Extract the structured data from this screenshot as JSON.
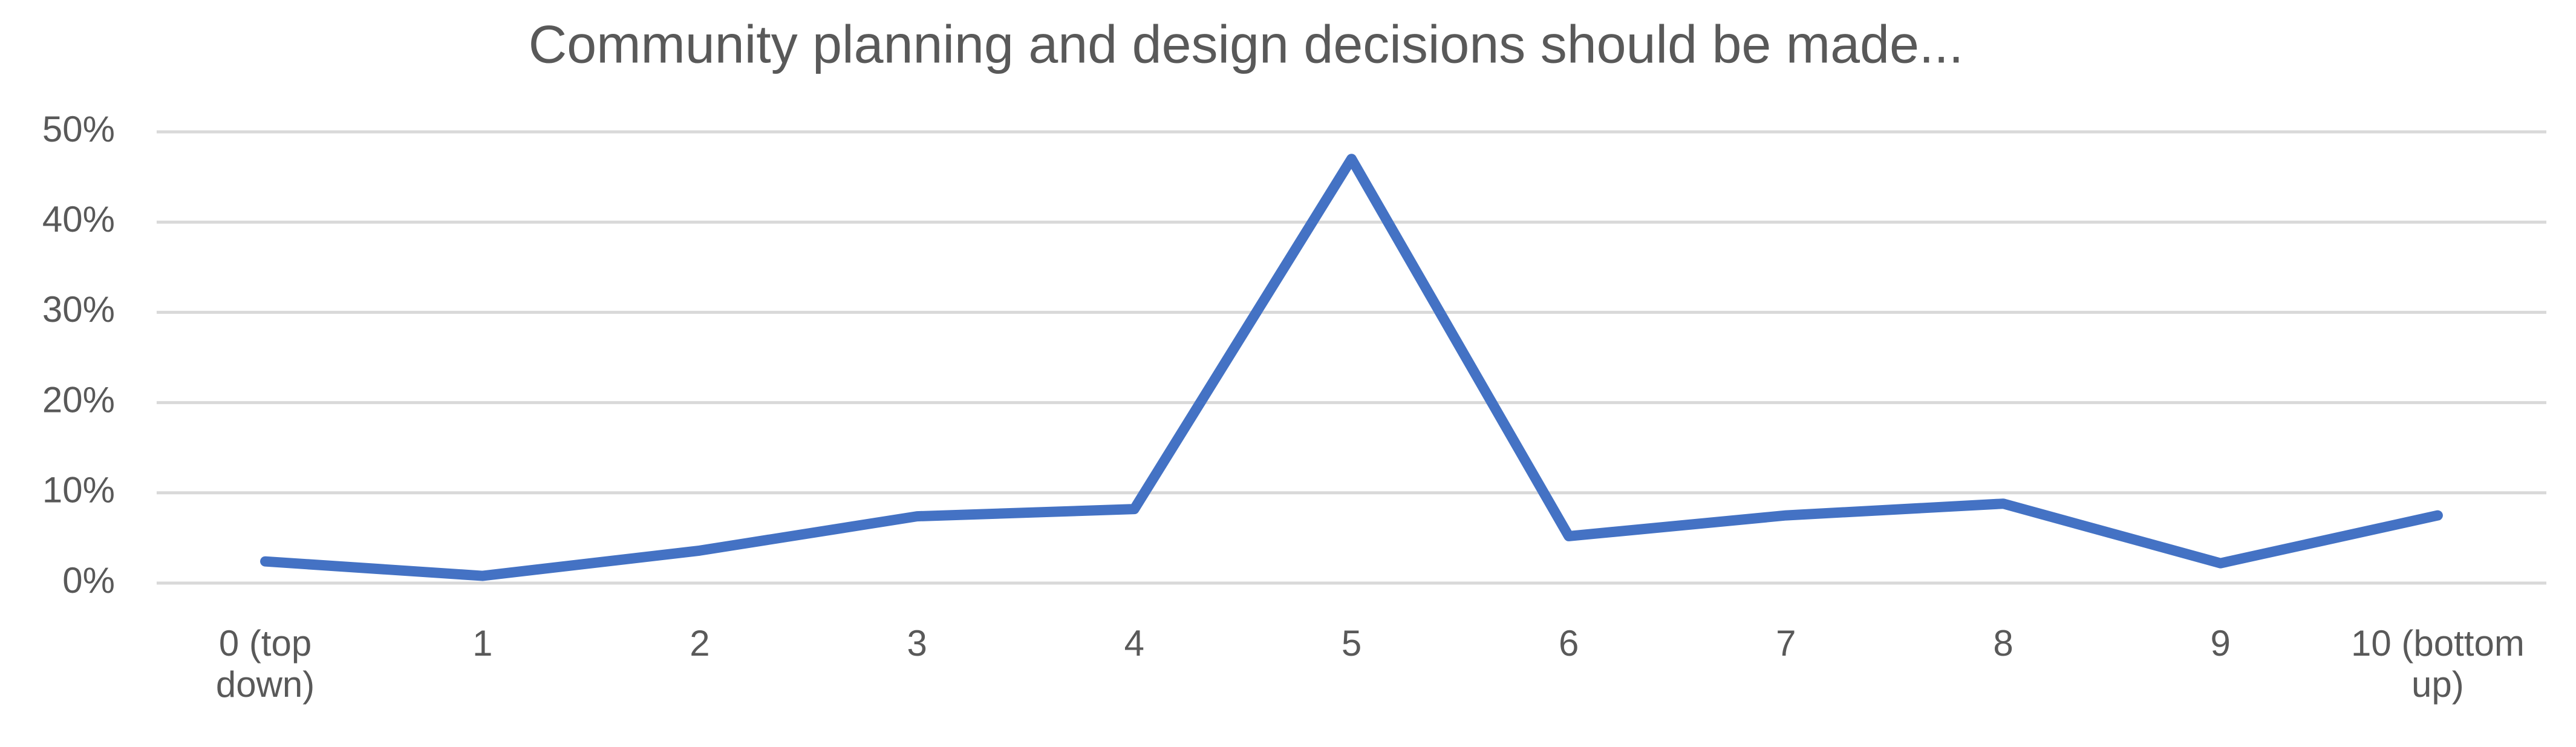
{
  "chart_data": {
    "type": "line",
    "title": "Community planning and design decisions should be made...",
    "categories": [
      "0 (top down)",
      "1",
      "2",
      "3",
      "4",
      "5",
      "6",
      "7",
      "8",
      "9",
      "10 (bottom up)"
    ],
    "series": [
      {
        "name": "Community planning and design decisions should be made...",
        "color": "#4472c4",
        "values": [
          2.4,
          0.8,
          3.6,
          7.4,
          8.2,
          47,
          5.2,
          7.5,
          8.8,
          2.2,
          7.5
        ]
      }
    ],
    "ylim": [
      0,
      50
    ],
    "yticks": [
      {
        "value": 0,
        "label": "0%"
      },
      {
        "value": 10,
        "label": "10%"
      },
      {
        "value": 20,
        "label": "20%"
      },
      {
        "value": 30,
        "label": "30%"
      },
      {
        "value": 40,
        "label": "40%"
      },
      {
        "value": 50,
        "label": "50%"
      }
    ],
    "grid": true
  }
}
